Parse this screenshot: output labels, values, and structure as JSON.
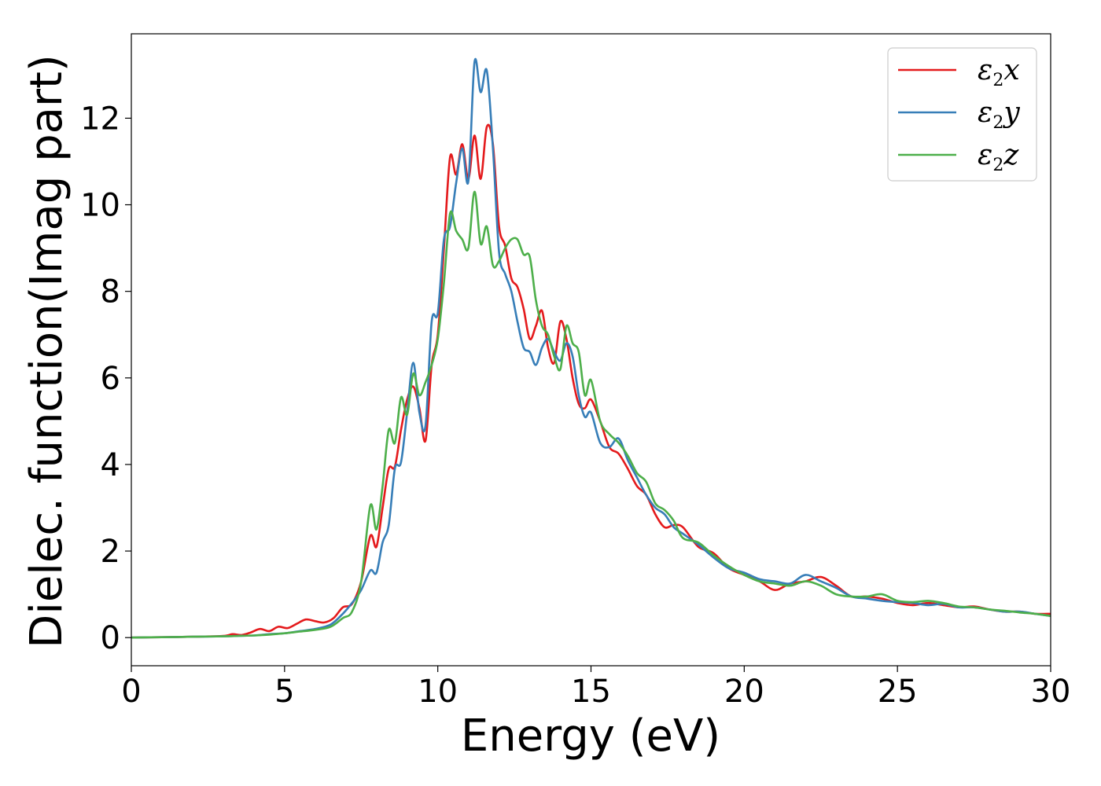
{
  "chart_data": {
    "type": "line",
    "xlabel": "Energy (eV)",
    "ylabel": "Dielec. function(Imag part)",
    "xlim": [
      0,
      30
    ],
    "ylim": [
      -0.65,
      13.95
    ],
    "xticks": [
      0,
      5,
      10,
      15,
      20,
      25,
      30
    ],
    "yticks": [
      0,
      2,
      4,
      6,
      8,
      10,
      12
    ],
    "grid": false,
    "legend_position": "top-right",
    "series": [
      {
        "name": "x",
        "legend_symbol": "ε",
        "legend_subscript": "2",
        "color": "#e41a1c",
        "x": [
          0,
          1,
          2,
          3,
          3.3,
          3.6,
          3.9,
          4.2,
          4.5,
          4.8,
          5.1,
          5.4,
          5.7,
          6.0,
          6.3,
          6.6,
          6.9,
          7.2,
          7.5,
          7.8,
          8.0,
          8.2,
          8.4,
          8.6,
          8.8,
          9.0,
          9.2,
          9.4,
          9.6,
          9.8,
          10.0,
          10.2,
          10.4,
          10.6,
          10.8,
          11.0,
          11.2,
          11.4,
          11.6,
          11.8,
          12.0,
          12.2,
          12.4,
          12.6,
          12.8,
          13.0,
          13.2,
          13.4,
          13.6,
          13.8,
          14.0,
          14.2,
          14.4,
          14.6,
          14.8,
          15.0,
          15.3,
          15.6,
          15.9,
          16.2,
          16.5,
          16.8,
          17.1,
          17.4,
          17.7,
          18.0,
          18.5,
          19.0,
          19.5,
          20.0,
          20.5,
          21.0,
          21.5,
          22.0,
          22.5,
          23.0,
          23.5,
          24.0,
          24.5,
          25.0,
          25.5,
          26.0,
          26.5,
          27.0,
          27.5,
          28.0,
          28.5,
          29.0,
          29.5,
          30.0
        ],
        "values": [
          0.0,
          0.01,
          0.02,
          0.04,
          0.08,
          0.06,
          0.12,
          0.2,
          0.15,
          0.25,
          0.22,
          0.32,
          0.42,
          0.38,
          0.35,
          0.45,
          0.7,
          0.78,
          1.3,
          2.35,
          2.1,
          3.0,
          3.9,
          3.95,
          4.8,
          5.5,
          5.8,
          5.3,
          4.55,
          6.3,
          7.0,
          9.0,
          11.1,
          10.7,
          11.4,
          10.6,
          11.6,
          10.6,
          11.8,
          11.4,
          9.5,
          9.05,
          8.3,
          8.1,
          7.6,
          6.9,
          7.2,
          7.55,
          6.7,
          6.35,
          7.3,
          6.9,
          6.0,
          5.4,
          5.3,
          5.5,
          5.0,
          4.4,
          4.25,
          3.9,
          3.5,
          3.3,
          2.85,
          2.55,
          2.6,
          2.55,
          2.1,
          1.95,
          1.6,
          1.45,
          1.3,
          1.1,
          1.25,
          1.3,
          1.4,
          1.2,
          0.95,
          0.95,
          0.9,
          0.8,
          0.75,
          0.8,
          0.75,
          0.7,
          0.72,
          0.65,
          0.6,
          0.6,
          0.55,
          0.55
        ]
      },
      {
        "name": "y",
        "legend_symbol": "ε",
        "legend_subscript": "2",
        "color": "#377eb8",
        "x": [
          0,
          1,
          2,
          3,
          3.5,
          4.0,
          4.5,
          5.0,
          5.5,
          6.0,
          6.5,
          6.9,
          7.2,
          7.5,
          7.8,
          8.0,
          8.2,
          8.4,
          8.6,
          8.8,
          9.0,
          9.2,
          9.4,
          9.6,
          9.8,
          10.0,
          10.2,
          10.4,
          10.6,
          10.8,
          11.0,
          11.2,
          11.4,
          11.6,
          11.8,
          12.0,
          12.2,
          12.4,
          12.6,
          12.8,
          13.0,
          13.2,
          13.4,
          13.6,
          13.8,
          14.0,
          14.2,
          14.4,
          14.6,
          14.8,
          15.0,
          15.3,
          15.6,
          15.9,
          16.2,
          16.5,
          16.8,
          17.1,
          17.4,
          17.7,
          18.0,
          18.5,
          19.0,
          19.5,
          20.0,
          20.5,
          21.0,
          21.5,
          22.0,
          22.5,
          23.0,
          23.5,
          24.0,
          24.5,
          25.0,
          25.5,
          26.0,
          26.5,
          27.0,
          27.5,
          28.0,
          28.5,
          29.0,
          29.5,
          30.0
        ],
        "values": [
          0.0,
          0.01,
          0.02,
          0.03,
          0.04,
          0.05,
          0.08,
          0.1,
          0.15,
          0.2,
          0.3,
          0.55,
          0.8,
          1.1,
          1.55,
          1.5,
          2.2,
          2.6,
          3.9,
          4.05,
          5.2,
          6.35,
          5.2,
          4.9,
          7.3,
          7.5,
          9.2,
          9.5,
          10.5,
          11.3,
          10.55,
          13.3,
          12.6,
          13.1,
          11.3,
          8.9,
          8.4,
          8.0,
          7.3,
          6.7,
          6.6,
          6.3,
          6.7,
          6.9,
          6.6,
          6.4,
          6.8,
          6.5,
          5.6,
          5.1,
          5.2,
          4.5,
          4.4,
          4.6,
          4.1,
          3.7,
          3.3,
          3.0,
          2.85,
          2.55,
          2.4,
          2.15,
          1.85,
          1.6,
          1.5,
          1.35,
          1.3,
          1.25,
          1.45,
          1.3,
          1.15,
          0.95,
          0.9,
          0.85,
          0.82,
          0.8,
          0.75,
          0.78,
          0.7,
          0.7,
          0.65,
          0.6,
          0.6,
          0.55,
          0.5
        ]
      },
      {
        "name": "z",
        "legend_symbol": "ε",
        "legend_subscript": "2",
        "color": "#4daf4a",
        "x": [
          0,
          1,
          2,
          3,
          3.5,
          4.0,
          4.5,
          5.0,
          5.5,
          6.0,
          6.5,
          6.9,
          7.2,
          7.5,
          7.8,
          8.0,
          8.2,
          8.4,
          8.6,
          8.8,
          9.0,
          9.2,
          9.4,
          9.6,
          9.8,
          10.0,
          10.2,
          10.4,
          10.6,
          10.8,
          11.0,
          11.2,
          11.4,
          11.6,
          11.8,
          12.0,
          12.2,
          12.4,
          12.6,
          12.8,
          13.0,
          13.2,
          13.4,
          13.6,
          13.8,
          14.0,
          14.2,
          14.4,
          14.6,
          14.8,
          15.0,
          15.3,
          15.6,
          15.9,
          16.2,
          16.5,
          16.8,
          17.1,
          17.4,
          17.7,
          18.0,
          18.5,
          19.0,
          19.5,
          20.0,
          20.5,
          21.0,
          21.5,
          22.0,
          22.5,
          23.0,
          23.5,
          24.0,
          24.5,
          25.0,
          25.5,
          26.0,
          26.5,
          27.0,
          27.5,
          28.0,
          28.5,
          29.0,
          29.5,
          30.0
        ],
        "values": [
          0.0,
          0.01,
          0.02,
          0.03,
          0.04,
          0.05,
          0.07,
          0.1,
          0.14,
          0.18,
          0.25,
          0.45,
          0.6,
          1.3,
          3.05,
          2.5,
          3.5,
          4.8,
          4.5,
          5.55,
          5.15,
          6.1,
          5.6,
          5.9,
          6.3,
          6.9,
          8.2,
          9.8,
          9.4,
          9.2,
          9.0,
          10.3,
          9.1,
          9.5,
          8.6,
          8.7,
          9.0,
          9.2,
          9.2,
          8.85,
          8.8,
          7.8,
          7.2,
          7.0,
          6.5,
          6.2,
          7.2,
          6.8,
          6.6,
          5.6,
          5.95,
          5.0,
          4.7,
          4.5,
          4.2,
          3.8,
          3.6,
          3.1,
          2.95,
          2.7,
          2.3,
          2.2,
          1.9,
          1.65,
          1.45,
          1.3,
          1.25,
          1.2,
          1.3,
          1.2,
          1.0,
          0.95,
          0.95,
          1.0,
          0.85,
          0.82,
          0.85,
          0.8,
          0.72,
          0.7,
          0.65,
          0.62,
          0.58,
          0.55,
          0.5
        ]
      }
    ]
  }
}
